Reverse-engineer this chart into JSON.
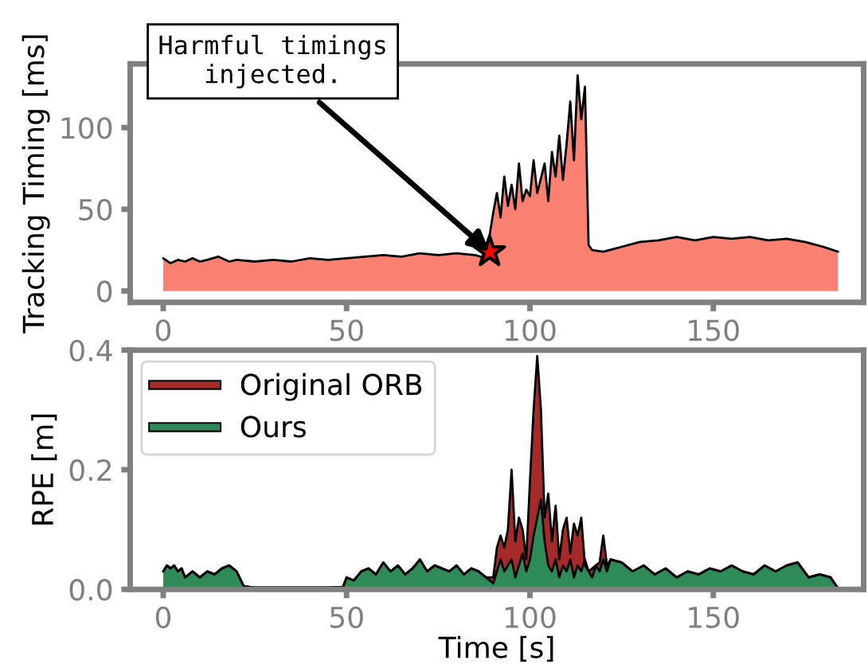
{
  "chart_data": [
    {
      "type": "area",
      "ylabel": "Tracking Timing [ms]",
      "xlim": [
        -9,
        191
      ],
      "ylim": [
        -7,
        139
      ],
      "xticks": [
        0,
        50,
        100,
        150
      ],
      "yticks": [
        0,
        50,
        100
      ],
      "grid": false,
      "legend": false,
      "annotations": [
        {
          "text": "Harmful timings\ninjected.",
          "x": 89,
          "y": 24
        }
      ],
      "series": [
        {
          "type": "area",
          "color": "#fa8072",
          "x": [
            0,
            2,
            4,
            6,
            8,
            10,
            12,
            15,
            18,
            20,
            25,
            30,
            35,
            40,
            45,
            50,
            55,
            60,
            65,
            70,
            75,
            80,
            85,
            88,
            90,
            91,
            92,
            93,
            94,
            95,
            96,
            97,
            98,
            99,
            100,
            101,
            102,
            104,
            105,
            106,
            107,
            108,
            109,
            110,
            111,
            112,
            113,
            114,
            115,
            116,
            117,
            120,
            125,
            130,
            135,
            140,
            145,
            150,
            155,
            160,
            165,
            170,
            175,
            180,
            184
          ],
          "values": [
            20,
            17,
            19,
            18,
            20,
            18,
            19,
            21,
            18,
            19,
            18,
            19,
            18,
            20,
            19,
            20,
            21,
            22,
            21,
            23,
            22,
            23,
            22,
            20,
            48,
            60,
            45,
            70,
            52,
            65,
            50,
            78,
            55,
            62,
            58,
            80,
            60,
            78,
            55,
            85,
            70,
            95,
            68,
            90,
            116,
            80,
            132,
            105,
            125,
            28,
            25,
            24,
            27,
            30,
            31,
            33,
            31,
            33,
            32,
            33,
            31,
            32,
            30,
            27,
            24
          ]
        },
        {
          "type": "scatter",
          "marker": "star",
          "color": "#ff0000",
          "x": [
            89
          ],
          "values": [
            24
          ]
        }
      ]
    },
    {
      "type": "area",
      "ylabel": "RPE [m]",
      "xlabel": "Time [s]",
      "xlim": [
        -9,
        191
      ],
      "ylim": [
        0,
        0.4
      ],
      "xticks": [
        0,
        50,
        100,
        150
      ],
      "yticks": [
        {
          "value": 0,
          "label": "0.0"
        },
        {
          "value": 0.2,
          "label": "0.2"
        },
        {
          "value": 0.4,
          "label": "0.4"
        }
      ],
      "grid": false,
      "legend": "top left",
      "x": [
        0,
        1,
        2,
        3,
        4,
        5,
        6,
        8,
        10,
        12,
        14,
        16,
        18,
        20,
        22,
        25,
        30,
        35,
        40,
        45,
        49,
        50,
        52,
        54,
        56,
        58,
        60,
        62,
        64,
        66,
        68,
        70,
        72,
        74,
        76,
        78,
        80,
        82,
        84,
        86,
        88,
        90,
        91,
        92,
        93,
        94,
        95,
        96,
        97,
        98,
        99,
        100,
        101,
        102,
        103,
        104,
        105,
        106,
        107,
        108,
        109,
        110,
        111,
        112,
        113,
        114,
        115,
        116,
        117,
        118,
        119,
        120,
        121,
        122,
        125,
        128,
        131,
        134,
        137,
        140,
        143,
        146,
        149,
        152,
        155,
        158,
        161,
        164,
        167,
        170,
        173,
        176,
        179,
        182,
        184
      ],
      "series": [
        {
          "name": "Original ORB",
          "color": "#a52a2a",
          "values": [
            0.03,
            0.04,
            0.035,
            0.04,
            0.03,
            0.035,
            0.02,
            0.03,
            0.02,
            0.03,
            0.025,
            0.035,
            0.04,
            0.03,
            0.005,
            0.003,
            0.003,
            0.003,
            0.003,
            0.003,
            0.004,
            0.02,
            0.015,
            0.03,
            0.035,
            0.025,
            0.045,
            0.03,
            0.04,
            0.025,
            0.035,
            0.05,
            0.03,
            0.04,
            0.035,
            0.03,
            0.04,
            0.025,
            0.035,
            0.03,
            0.02,
            0.02,
            0.07,
            0.09,
            0.07,
            0.1,
            0.2,
            0.08,
            0.12,
            0.1,
            0.05,
            0.18,
            0.3,
            0.39,
            0.3,
            0.12,
            0.16,
            0.08,
            0.14,
            0.05,
            0.1,
            0.12,
            0.06,
            0.11,
            0.09,
            0.12,
            0.04,
            0.03,
            0.035,
            0.04,
            0.045,
            0.09,
            0.04,
            0.05,
            0.045,
            0.03,
            0.04,
            0.025,
            0.035,
            0.02,
            0.03,
            0.025,
            0.035,
            0.03,
            0.04,
            0.03,
            0.025,
            0.04,
            0.03,
            0.04,
            0.045,
            0.02,
            0.025,
            0.02,
            0.002
          ]
        },
        {
          "name": "Ours",
          "color": "#2e8b57",
          "values": [
            0.03,
            0.04,
            0.035,
            0.04,
            0.03,
            0.035,
            0.02,
            0.03,
            0.02,
            0.03,
            0.025,
            0.035,
            0.04,
            0.03,
            0.005,
            0.003,
            0.003,
            0.003,
            0.003,
            0.003,
            0.004,
            0.02,
            0.015,
            0.03,
            0.035,
            0.025,
            0.045,
            0.03,
            0.04,
            0.025,
            0.035,
            0.05,
            0.03,
            0.04,
            0.035,
            0.03,
            0.04,
            0.025,
            0.035,
            0.03,
            0.02,
            0.01,
            0.03,
            0.05,
            0.03,
            0.04,
            0.05,
            0.02,
            0.04,
            0.06,
            0.03,
            0.05,
            0.09,
            0.12,
            0.15,
            0.08,
            0.04,
            0.03,
            0.05,
            0.02,
            0.04,
            0.03,
            0.05,
            0.02,
            0.04,
            0.03,
            0.05,
            0.03,
            0.02,
            0.04,
            0.03,
            0.05,
            0.03,
            0.05,
            0.045,
            0.03,
            0.04,
            0.025,
            0.035,
            0.02,
            0.03,
            0.025,
            0.035,
            0.03,
            0.04,
            0.03,
            0.025,
            0.04,
            0.03,
            0.04,
            0.045,
            0.02,
            0.025,
            0.02,
            0.002
          ]
        }
      ]
    }
  ]
}
